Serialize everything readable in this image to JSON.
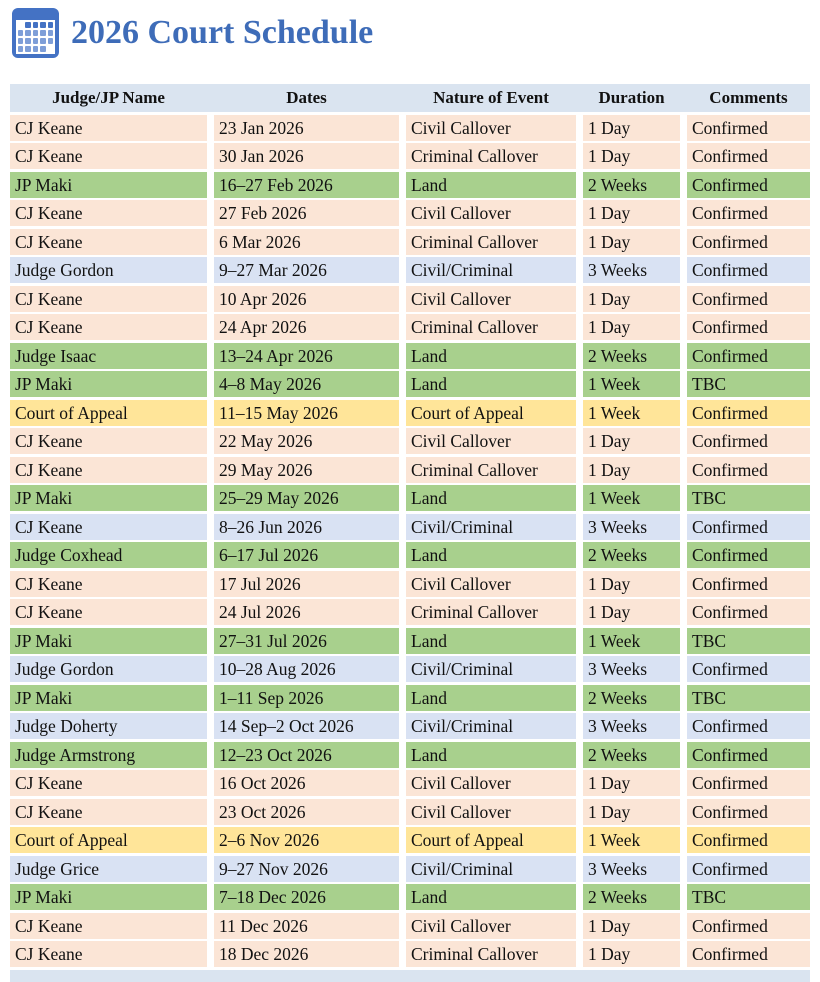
{
  "title": "2026 Court Schedule",
  "colors": {
    "accent": "#4472C4",
    "title": "#3E6CB8",
    "header_bg": "#DAE4F0",
    "row_callover": "#FBE5D6",
    "row_land": "#A8D08D",
    "row_civil_criminal": "#D9E2F3",
    "row_court_of_appeal": "#FFE599"
  },
  "table": {
    "columns": [
      "Judge/JP Name",
      "Dates",
      "Nature of Event",
      "Duration",
      "Comments"
    ],
    "rows": [
      {
        "name": "CJ Keane",
        "dates": "23 Jan 2026",
        "event": "Civil Callover",
        "duration": "1 Day",
        "comments": "Confirmed",
        "color": "callover"
      },
      {
        "name": "CJ Keane",
        "dates": "30 Jan 2026",
        "event": "Criminal Callover",
        "duration": "1 Day",
        "comments": "Confirmed",
        "color": "callover"
      },
      {
        "name": "JP Maki",
        "dates": "16–27 Feb 2026",
        "event": "Land",
        "duration": "2 Weeks",
        "comments": "Confirmed",
        "color": "land"
      },
      {
        "name": "CJ Keane",
        "dates": "27 Feb 2026",
        "event": "Civil Callover",
        "duration": "1 Day",
        "comments": "Confirmed",
        "color": "callover"
      },
      {
        "name": "CJ Keane",
        "dates": "6 Mar 2026",
        "event": "Criminal Callover",
        "duration": "1 Day",
        "comments": "Confirmed",
        "color": "callover"
      },
      {
        "name": "Judge Gordon",
        "dates": "9–27 Mar 2026",
        "event": "Civil/Criminal",
        "duration": "3 Weeks",
        "comments": "Confirmed",
        "color": "civil-criminal"
      },
      {
        "name": "CJ Keane",
        "dates": "10 Apr 2026",
        "event": "Civil Callover",
        "duration": "1 Day",
        "comments": "Confirmed",
        "color": "callover"
      },
      {
        "name": "CJ Keane",
        "dates": "24 Apr 2026",
        "event": "Criminal Callover",
        "duration": "1 Day",
        "comments": "Confirmed",
        "color": "callover"
      },
      {
        "name": "Judge Isaac",
        "dates": "13–24 Apr 2026",
        "event": "Land",
        "duration": "2 Weeks",
        "comments": "Confirmed",
        "color": "land"
      },
      {
        "name": "JP Maki",
        "dates": "4–8 May 2026",
        "event": "Land",
        "duration": "1 Week",
        "comments": "TBC",
        "color": "land"
      },
      {
        "name": "Court of Appeal",
        "dates": "11–15 May 2026",
        "event": "Court of Appeal",
        "duration": "1 Week",
        "comments": "Confirmed",
        "color": "court-of-appeal"
      },
      {
        "name": "CJ Keane",
        "dates": "22 May 2026",
        "event": "Civil Callover",
        "duration": "1 Day",
        "comments": "Confirmed",
        "color": "callover"
      },
      {
        "name": "CJ Keane",
        "dates": "29 May 2026",
        "event": "Criminal Callover",
        "duration": "1 Day",
        "comments": "Confirmed",
        "color": "callover"
      },
      {
        "name": "JP Maki",
        "dates": "25–29 May 2026",
        "event": "Land",
        "duration": "1 Week",
        "comments": "TBC",
        "color": "land"
      },
      {
        "name": "CJ Keane",
        "dates": "8–26 Jun 2026",
        "event": "Civil/Criminal",
        "duration": "3 Weeks",
        "comments": "Confirmed",
        "color": "civil-criminal"
      },
      {
        "name": "Judge Coxhead",
        "dates": "6–17 Jul 2026",
        "event": "Land",
        "duration": "2 Weeks",
        "comments": "Confirmed",
        "color": "land"
      },
      {
        "name": "CJ Keane",
        "dates": "17 Jul 2026",
        "event": "Civil Callover",
        "duration": "1 Day",
        "comments": "Confirmed",
        "color": "callover"
      },
      {
        "name": "CJ Keane",
        "dates": "24 Jul 2026",
        "event": "Criminal Callover",
        "duration": "1 Day",
        "comments": "Confirmed",
        "color": "callover"
      },
      {
        "name": "JP Maki",
        "dates": "27–31 Jul 2026",
        "event": "Land",
        "duration": "1 Week",
        "comments": "TBC",
        "color": "land"
      },
      {
        "name": "Judge Gordon",
        "dates": "10–28 Aug 2026",
        "event": "Civil/Criminal",
        "duration": "3 Weeks",
        "comments": "Confirmed",
        "color": "civil-criminal"
      },
      {
        "name": "JP Maki",
        "dates": "1–11 Sep 2026",
        "event": "Land",
        "duration": "2 Weeks",
        "comments": "TBC",
        "color": "land"
      },
      {
        "name": "Judge Doherty",
        "dates": "14 Sep–2 Oct 2026",
        "event": "Civil/Criminal",
        "duration": "3 Weeks",
        "comments": "Confirmed",
        "color": "civil-criminal"
      },
      {
        "name": "Judge Armstrong",
        "dates": "12–23 Oct 2026",
        "event": "Land",
        "duration": "2 Weeks",
        "comments": "Confirmed",
        "color": "land"
      },
      {
        "name": "CJ Keane",
        "dates": "16 Oct 2026",
        "event": "Civil Callover",
        "duration": "1 Day",
        "comments": "Confirmed",
        "color": "callover"
      },
      {
        "name": "CJ Keane",
        "dates": "23 Oct 2026",
        "event": "Civil Callover",
        "duration": "1 Day",
        "comments": "Confirmed",
        "color": "callover"
      },
      {
        "name": "Court of Appeal",
        "dates": "2–6 Nov 2026",
        "event": "Court of Appeal",
        "duration": "1 Week",
        "comments": "Confirmed",
        "color": "court-of-appeal"
      },
      {
        "name": "Judge Grice",
        "dates": "9–27 Nov 2026",
        "event": "Civil/Criminal",
        "duration": "3 Weeks",
        "comments": "Confirmed",
        "color": "civil-criminal"
      },
      {
        "name": "JP Maki",
        "dates": "7–18 Dec 2026",
        "event": "Land",
        "duration": "2 Weeks",
        "comments": "TBC",
        "color": "land"
      },
      {
        "name": "CJ Keane",
        "dates": "11 Dec 2026",
        "event": "Civil Callover",
        "duration": "1 Day",
        "comments": "Confirmed",
        "color": "callover"
      },
      {
        "name": "CJ Keane",
        "dates": "18 Dec 2026",
        "event": "Criminal Callover",
        "duration": "1 Day",
        "comments": "Confirmed",
        "color": "callover"
      }
    ]
  }
}
